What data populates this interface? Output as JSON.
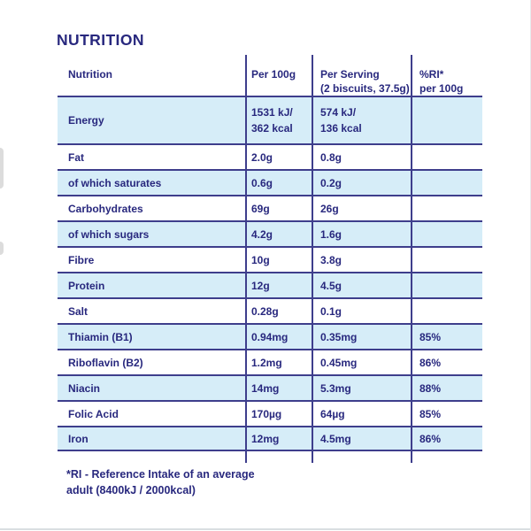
{
  "colors": {
    "navy_text": "#28287E",
    "divider_line": "#3E3E8C",
    "row_shading_blue": "#D6EDF8"
  },
  "page": {
    "title": "NUTRITION",
    "footnote": "*RI - Reference Intake of an average\nadult (8400kJ / 2000kcal)"
  },
  "table": {
    "columns": [
      {
        "label": "Nutrition",
        "sublabel": ""
      },
      {
        "label": "Per 100g",
        "sublabel": ""
      },
      {
        "label": "Per Serving",
        "sublabel": "(2 biscuits, 37.5g)"
      },
      {
        "label": "%RI*",
        "sublabel": "per 100g"
      }
    ],
    "rows": [
      {
        "nutrient": "Energy",
        "per_100g": "1531 kJ/\n362 kcal",
        "per_serving": "574 kJ/\n136 kcal",
        "ri_percent": "",
        "shaded": true,
        "tall": true
      },
      {
        "nutrient": "Fat",
        "per_100g": "2.0g",
        "per_serving": "0.8g",
        "ri_percent": "",
        "shaded": false
      },
      {
        "nutrient": "of which saturates",
        "per_100g": "0.6g",
        "per_serving": "0.2g",
        "ri_percent": "",
        "shaded": true
      },
      {
        "nutrient": "Carbohydrates",
        "per_100g": "69g",
        "per_serving": "26g",
        "ri_percent": "",
        "shaded": false
      },
      {
        "nutrient": "of which sugars",
        "per_100g": "4.2g",
        "per_serving": "1.6g",
        "ri_percent": "",
        "shaded": true
      },
      {
        "nutrient": "Fibre",
        "per_100g": "10g",
        "per_serving": "3.8g",
        "ri_percent": "",
        "shaded": false
      },
      {
        "nutrient": "Protein",
        "per_100g": "12g",
        "per_serving": "4.5g",
        "ri_percent": "",
        "shaded": true
      },
      {
        "nutrient": "Salt",
        "per_100g": "0.28g",
        "per_serving": "0.1g",
        "ri_percent": "",
        "shaded": false
      },
      {
        "nutrient": "Thiamin (B1)",
        "per_100g": "0.94mg",
        "per_serving": "0.35mg",
        "ri_percent": "85%",
        "shaded": true
      },
      {
        "nutrient": "Riboflavin (B2)",
        "per_100g": "1.2mg",
        "per_serving": "0.45mg",
        "ri_percent": "86%",
        "shaded": false
      },
      {
        "nutrient": "Niacin",
        "per_100g": "14mg",
        "per_serving": "5.3mg",
        "ri_percent": "88%",
        "shaded": true
      },
      {
        "nutrient": "Folic Acid",
        "per_100g": "170µg",
        "per_serving": "64µg",
        "ri_percent": "85%",
        "shaded": false
      },
      {
        "nutrient": "Iron",
        "per_100g": "12mg",
        "per_serving": "4.5mg",
        "ri_percent": "86%",
        "shaded": true
      }
    ]
  }
}
